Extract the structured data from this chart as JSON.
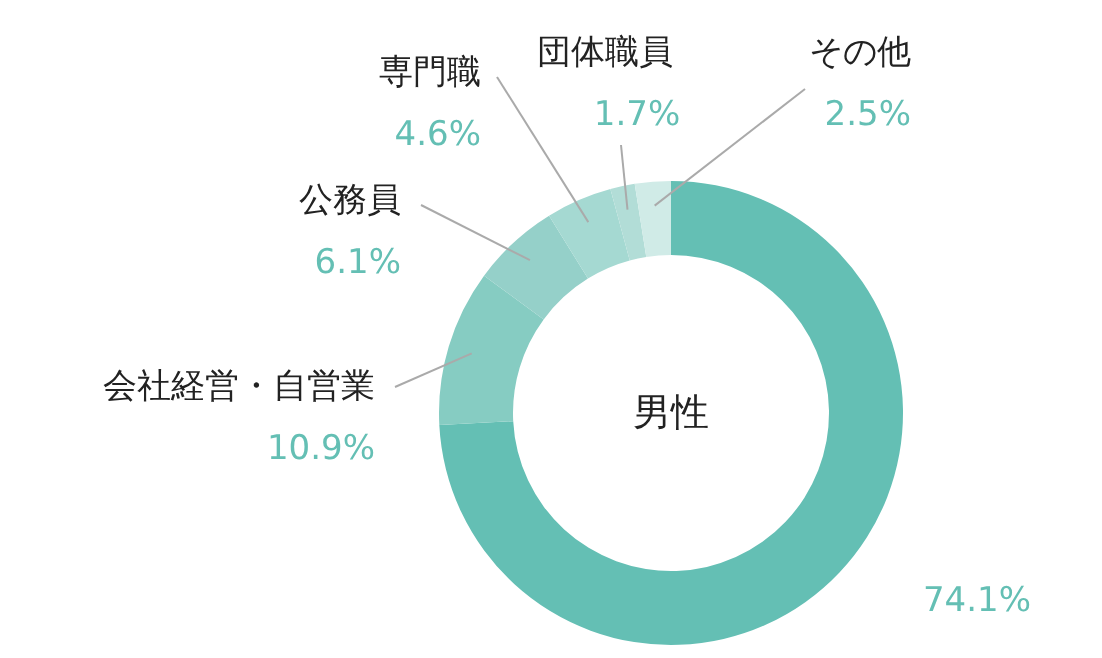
{
  "chart_data": {
    "type": "donut",
    "title": "男性",
    "categories": [
      null,
      "会社経営・自営業",
      "公務員",
      "専門職",
      "団体職員",
      "その他"
    ],
    "values": [
      74.1,
      10.9,
      6.1,
      4.6,
      1.7,
      2.5
    ],
    "colors": [
      "#64bfb4",
      "#86ccc2",
      "#95d0c9",
      "#a5d9d2",
      "#b2ddd7",
      "#d0ebe7"
    ],
    "value_labels": [
      "74.1%",
      "10.9%",
      "6.1%",
      "4.6%",
      "1.7%",
      "2.5%"
    ]
  }
}
